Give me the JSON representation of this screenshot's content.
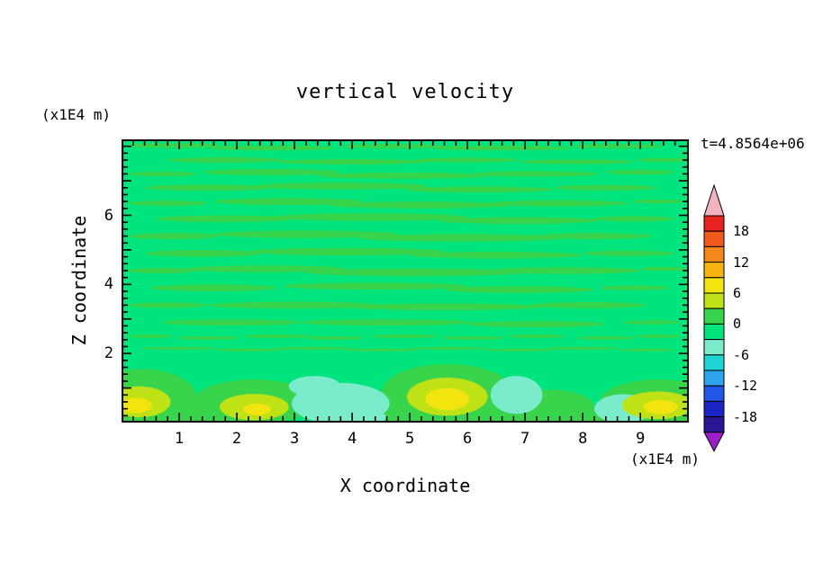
{
  "chart_data": {
    "type": "heatmap",
    "subtype": "filled-contour",
    "title": "vertical velocity",
    "xlabel": "X coordinate",
    "ylabel": "Z coordinate",
    "x_unit_label": "(x1E4 m)",
    "y_unit_label": "(x1E4 m)",
    "time_annotation": "t=4.8564e+06",
    "x_range": [
      0,
      9.84
    ],
    "z_range": [
      0,
      8.2
    ],
    "x_tick_values": [
      1,
      2,
      3,
      4,
      5,
      6,
      7,
      8,
      9
    ],
    "x_tick_labels": [
      "1",
      "2",
      "3",
      "4",
      "5",
      "6",
      "7",
      "8",
      "9"
    ],
    "y_tick_values": [
      2,
      4,
      6
    ],
    "y_tick_labels": [
      "2",
      "4",
      "6"
    ],
    "minor_tick_step": 0.2,
    "grid": false,
    "legend_position": "colorbar-right",
    "colorbar": {
      "label_values": [
        18,
        12,
        6,
        0,
        -6,
        -12,
        -18
      ],
      "labels": [
        "18",
        "12",
        "6",
        "0",
        "-6",
        "-12",
        "-18"
      ],
      "level_min": -21,
      "level_max": 21,
      "level_step": 3,
      "over_arrow_color": "#f2b4bc",
      "under_arrow_color": "#9c1ec8",
      "segment_colors_top_to_bottom": [
        "#e8231f",
        "#f25a1c",
        "#f4861a",
        "#f6b312",
        "#f2e40e",
        "#bfe216",
        "#38d44c",
        "#00e47d",
        "#7aeccb",
        "#1ed4d4",
        "#2fa4ee",
        "#2256e8",
        "#1b24c4",
        "#2a1692"
      ]
    },
    "field": {
      "background_color": "#00e47d",
      "streak_color": "#38d44c",
      "streaks": [
        [
          0.9,
          8.02,
          0.8,
          0.07
        ],
        [
          2.6,
          7.95,
          1.1,
          0.07
        ],
        [
          4.7,
          8.0,
          0.9,
          0.06
        ],
        [
          6.6,
          7.95,
          1.2,
          0.07
        ],
        [
          8.6,
          8.0,
          0.8,
          0.06
        ],
        [
          1.8,
          7.6,
          1.0,
          0.08
        ],
        [
          4.0,
          7.55,
          1.3,
          0.08
        ],
        [
          6.0,
          7.6,
          0.9,
          0.07
        ],
        [
          7.9,
          7.55,
          1.0,
          0.07
        ],
        [
          9.4,
          7.6,
          0.45,
          0.06
        ],
        [
          0.7,
          7.2,
          0.6,
          0.07
        ],
        [
          2.6,
          7.25,
          1.2,
          0.09
        ],
        [
          4.9,
          7.15,
          1.5,
          0.09
        ],
        [
          7.2,
          7.2,
          1.1,
          0.08
        ],
        [
          9.0,
          7.25,
          0.6,
          0.07
        ],
        [
          1.5,
          6.8,
          1.1,
          0.09
        ],
        [
          3.8,
          6.85,
          1.5,
          0.1
        ],
        [
          6.2,
          6.75,
          1.3,
          0.09
        ],
        [
          8.4,
          6.8,
          0.9,
          0.08
        ],
        [
          0.8,
          6.35,
          0.7,
          0.08
        ],
        [
          2.9,
          6.4,
          1.3,
          0.1
        ],
        [
          5.2,
          6.3,
          1.6,
          0.1
        ],
        [
          7.6,
          6.35,
          1.2,
          0.09
        ],
        [
          9.3,
          6.4,
          0.45,
          0.06
        ],
        [
          1.8,
          5.9,
          1.2,
          0.1
        ],
        [
          4.3,
          5.95,
          1.7,
          0.11
        ],
        [
          6.9,
          5.85,
          1.4,
          0.1
        ],
        [
          8.9,
          5.9,
          0.7,
          0.08
        ],
        [
          0.9,
          5.4,
          0.8,
          0.09
        ],
        [
          3.2,
          5.45,
          1.6,
          0.11
        ],
        [
          5.9,
          5.35,
          1.8,
          0.11
        ],
        [
          8.2,
          5.4,
          1.0,
          0.09
        ],
        [
          1.4,
          4.9,
          1.0,
          0.1
        ],
        [
          3.9,
          4.95,
          1.7,
          0.11
        ],
        [
          6.5,
          4.85,
          1.5,
          0.1
        ],
        [
          8.8,
          4.9,
          0.8,
          0.08
        ],
        [
          0.7,
          4.4,
          0.6,
          0.08
        ],
        [
          2.5,
          4.45,
          1.4,
          0.1
        ],
        [
          5.1,
          4.35,
          1.9,
          0.11
        ],
        [
          7.7,
          4.4,
          1.3,
          0.1
        ],
        [
          9.4,
          4.45,
          0.4,
          0.06
        ],
        [
          1.6,
          3.9,
          1.1,
          0.1
        ],
        [
          4.4,
          3.95,
          1.6,
          0.1
        ],
        [
          6.9,
          3.85,
          1.3,
          0.1
        ],
        [
          8.9,
          3.9,
          0.6,
          0.07
        ],
        [
          0.8,
          3.4,
          0.7,
          0.08
        ],
        [
          3.0,
          3.4,
          1.5,
          0.1
        ],
        [
          5.6,
          3.35,
          1.7,
          0.1
        ],
        [
          8.1,
          3.4,
          1.0,
          0.09
        ],
        [
          1.9,
          2.9,
          1.2,
          0.09
        ],
        [
          4.6,
          2.9,
          1.5,
          0.09
        ],
        [
          7.2,
          2.85,
          1.2,
          0.09
        ],
        [
          9.2,
          2.9,
          0.5,
          0.06
        ],
        [
          0.5,
          2.5,
          0.4,
          0.05
        ],
        [
          1.5,
          2.45,
          0.55,
          0.05
        ],
        [
          2.7,
          2.5,
          0.6,
          0.05
        ],
        [
          3.7,
          2.45,
          0.5,
          0.05
        ],
        [
          4.9,
          2.5,
          0.6,
          0.05
        ],
        [
          6.1,
          2.45,
          0.55,
          0.05
        ],
        [
          7.2,
          2.5,
          0.5,
          0.05
        ],
        [
          8.4,
          2.45,
          0.5,
          0.05
        ],
        [
          9.3,
          2.5,
          0.4,
          0.05
        ],
        [
          1.0,
          2.15,
          0.7,
          0.04
        ],
        [
          2.2,
          2.1,
          0.6,
          0.04
        ],
        [
          3.3,
          2.15,
          0.7,
          0.04
        ],
        [
          4.5,
          2.1,
          0.65,
          0.04
        ],
        [
          5.7,
          2.15,
          0.7,
          0.04
        ],
        [
          6.9,
          2.1,
          0.6,
          0.04
        ],
        [
          8.0,
          2.15,
          0.65,
          0.04
        ],
        [
          9.1,
          2.1,
          0.5,
          0.04
        ]
      ],
      "blobs": [
        {
          "x": 0.35,
          "z": 0.75,
          "rx": 0.95,
          "rz": 0.8,
          "color": "#38d44c"
        },
        {
          "x": 2.3,
          "z": 0.6,
          "rx": 1.05,
          "rz": 0.65,
          "color": "#38d44c"
        },
        {
          "x": 5.65,
          "z": 0.85,
          "rx": 1.15,
          "rz": 0.85,
          "color": "#38d44c"
        },
        {
          "x": 7.45,
          "z": 0.45,
          "rx": 0.75,
          "rz": 0.5,
          "color": "#38d44c"
        },
        {
          "x": 9.3,
          "z": 0.6,
          "rx": 1.0,
          "rz": 0.65,
          "color": "#38d44c"
        },
        {
          "x": 1.2,
          "z": 0.12,
          "rx": 1.5,
          "rz": 0.35,
          "color": "#38d44c"
        },
        {
          "x": 4.9,
          "z": 0.1,
          "rx": 1.3,
          "rz": 0.3,
          "color": "#38d44c"
        },
        {
          "x": 8.3,
          "z": 0.1,
          "rx": 1.2,
          "rz": 0.28,
          "color": "#38d44c"
        },
        {
          "x": 6.6,
          "z": 0.15,
          "rx": 0.8,
          "rz": 0.25,
          "color": "#38d44c"
        },
        {
          "x": 3.8,
          "z": 0.55,
          "rx": 0.85,
          "rz": 0.6,
          "color": "#7aeccb"
        },
        {
          "x": 4.1,
          "z": 0.15,
          "rx": 0.5,
          "rz": 0.22,
          "color": "#7aeccb"
        },
        {
          "x": 3.35,
          "z": 1.05,
          "rx": 0.45,
          "rz": 0.3,
          "color": "#7aeccb"
        },
        {
          "x": 6.85,
          "z": 0.8,
          "rx": 0.45,
          "rz": 0.55,
          "color": "#7aeccb"
        },
        {
          "x": 8.7,
          "z": 0.4,
          "rx": 0.5,
          "rz": 0.42,
          "color": "#7aeccb"
        },
        {
          "x": 0.3,
          "z": 0.6,
          "rx": 0.55,
          "rz": 0.45,
          "color": "#bfe216"
        },
        {
          "x": 2.3,
          "z": 0.45,
          "rx": 0.6,
          "rz": 0.38,
          "color": "#bfe216"
        },
        {
          "x": 5.65,
          "z": 0.75,
          "rx": 0.7,
          "rz": 0.55,
          "color": "#bfe216"
        },
        {
          "x": 9.3,
          "z": 0.5,
          "rx": 0.62,
          "rz": 0.4,
          "color": "#bfe216"
        },
        {
          "x": 0.25,
          "z": 0.5,
          "rx": 0.28,
          "rz": 0.22,
          "color": "#f2e40e"
        },
        {
          "x": 2.35,
          "z": 0.38,
          "rx": 0.24,
          "rz": 0.17,
          "color": "#f2e40e"
        },
        {
          "x": 5.65,
          "z": 0.68,
          "rx": 0.38,
          "rz": 0.32,
          "color": "#f2e40e"
        },
        {
          "x": 9.35,
          "z": 0.45,
          "rx": 0.3,
          "rz": 0.2,
          "color": "#f2e40e"
        }
      ]
    }
  }
}
